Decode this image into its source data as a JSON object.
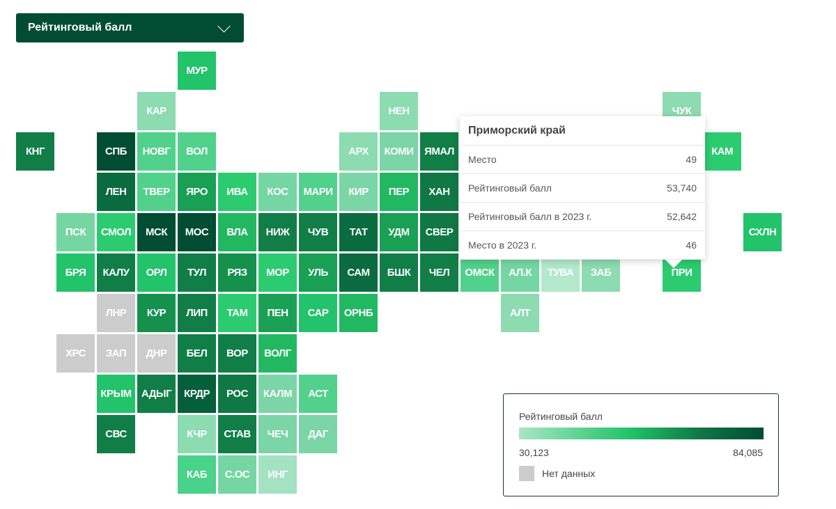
{
  "dropdown": {
    "selected": "Рейтинговый балл",
    "icon": "chevron-down-icon"
  },
  "colors": {
    "darkest": "#004d33",
    "no_data": "#cccccc"
  },
  "tiles": [
    {
      "label": "МУР",
      "c": 4,
      "r": 0,
      "color": "#22c36a"
    },
    {
      "label": "КАР",
      "c": 3,
      "r": 1,
      "color": "#8cdbb1"
    },
    {
      "label": "НЕН",
      "c": 9,
      "r": 1,
      "color": "#8cdbb1"
    },
    {
      "label": "ЧУК",
      "c": 16,
      "r": 1,
      "color": "#8cdbb1"
    },
    {
      "label": "КНГ",
      "c": 0,
      "r": 2,
      "color": "#117e48"
    },
    {
      "label": "СПБ",
      "c": 2,
      "r": 2,
      "color": "#004d33"
    },
    {
      "label": "НОВГ",
      "c": 3,
      "r": 2,
      "color": "#52d18c"
    },
    {
      "label": "ВОЛ",
      "c": 4,
      "r": 2,
      "color": "#52d18c"
    },
    {
      "label": "АРХ",
      "c": 8,
      "r": 2,
      "color": "#8cdbb1"
    },
    {
      "label": "КОМИ",
      "c": 9,
      "r": 2,
      "color": "#7cd5a7"
    },
    {
      "label": "ЯМАЛ",
      "c": 10,
      "r": 2,
      "color": "#117e48"
    },
    {
      "label": "КАМ",
      "c": 17,
      "r": 2,
      "color": "#2ccb70"
    },
    {
      "label": "ЛЕН",
      "c": 2,
      "r": 3,
      "color": "#0b6b40"
    },
    {
      "label": "ТВЕР",
      "c": 3,
      "r": 3,
      "color": "#52d18c"
    },
    {
      "label": "ЯРО",
      "c": 4,
      "r": 3,
      "color": "#19a055"
    },
    {
      "label": "ИВА",
      "c": 5,
      "r": 3,
      "color": "#2ccb70"
    },
    {
      "label": "КОС",
      "c": 6,
      "r": 3,
      "color": "#76d6a3"
    },
    {
      "label": "МАРИ",
      "c": 7,
      "r": 3,
      "color": "#52d18c"
    },
    {
      "label": "КИР",
      "c": 8,
      "r": 3,
      "color": "#7cd5a7"
    },
    {
      "label": "ПЕР",
      "c": 9,
      "r": 3,
      "color": "#22b862"
    },
    {
      "label": "ХАН",
      "c": 10,
      "r": 3,
      "color": "#0f7845"
    },
    {
      "label": "ПСК",
      "c": 1,
      "r": 4,
      "color": "#76d6a3"
    },
    {
      "label": "СМОЛ",
      "c": 2,
      "r": 4,
      "color": "#2ccb70"
    },
    {
      "label": "МСК",
      "c": 3,
      "r": 4,
      "color": "#004d33"
    },
    {
      "label": "МОС",
      "c": 4,
      "r": 4,
      "color": "#004d33"
    },
    {
      "label": "ВЛА",
      "c": 5,
      "r": 4,
      "color": "#22b862"
    },
    {
      "label": "НИЖ",
      "c": 6,
      "r": 4,
      "color": "#117e48"
    },
    {
      "label": "ЧУВ",
      "c": 7,
      "r": 4,
      "color": "#117e48"
    },
    {
      "label": "ТАТ",
      "c": 8,
      "r": 4,
      "color": "#0b6b40"
    },
    {
      "label": "УДМ",
      "c": 9,
      "r": 4,
      "color": "#19a055"
    },
    {
      "label": "СВЕР",
      "c": 10,
      "r": 4,
      "color": "#0f7845"
    },
    {
      "label": "СХЛН",
      "c": 18,
      "r": 4,
      "color": "#22c36a"
    },
    {
      "label": "БРЯ",
      "c": 1,
      "r": 5,
      "color": "#22c36a"
    },
    {
      "label": "КАЛУ",
      "c": 2,
      "r": 5,
      "color": "#117e48"
    },
    {
      "label": "ОРЛ",
      "c": 3,
      "r": 5,
      "color": "#22c36a"
    },
    {
      "label": "ТУЛ",
      "c": 4,
      "r": 5,
      "color": "#117e48"
    },
    {
      "label": "РЯЗ",
      "c": 5,
      "r": 5,
      "color": "#15904d"
    },
    {
      "label": "МОР",
      "c": 6,
      "r": 5,
      "color": "#2ccb70"
    },
    {
      "label": "УЛЬ",
      "c": 7,
      "r": 5,
      "color": "#19a055"
    },
    {
      "label": "САМ",
      "c": 8,
      "r": 5,
      "color": "#0b6b40"
    },
    {
      "label": "БШК",
      "c": 9,
      "r": 5,
      "color": "#117e48"
    },
    {
      "label": "ЧЕЛ",
      "c": 10,
      "r": 5,
      "color": "#117e48"
    },
    {
      "label": "ОМСК",
      "c": 11,
      "r": 5,
      "color": "#52d18c"
    },
    {
      "label": "АЛ.К",
      "c": 12,
      "r": 5,
      "color": "#76d6a3"
    },
    {
      "label": "ТУВА",
      "c": 13,
      "r": 5,
      "color": "#b2e8cb"
    },
    {
      "label": "ЗАБ",
      "c": 14,
      "r": 5,
      "color": "#8cdbb1"
    },
    {
      "label": "ПРИ",
      "c": 16,
      "r": 5,
      "color": "#2ccb70"
    },
    {
      "label": "ЛНР",
      "c": 2,
      "r": 6,
      "color": "#cccccc"
    },
    {
      "label": "КУР",
      "c": 3,
      "r": 6,
      "color": "#15904d"
    },
    {
      "label": "ЛИП",
      "c": 4,
      "r": 6,
      "color": "#117e48"
    },
    {
      "label": "ТАМ",
      "c": 5,
      "r": 6,
      "color": "#2ccb70"
    },
    {
      "label": "ПЕН",
      "c": 6,
      "r": 6,
      "color": "#19a055"
    },
    {
      "label": "САР",
      "c": 7,
      "r": 6,
      "color": "#22c36a"
    },
    {
      "label": "ОРНБ",
      "c": 8,
      "r": 6,
      "color": "#22b862"
    },
    {
      "label": "АЛТ",
      "c": 12,
      "r": 6,
      "color": "#8cdbb1"
    },
    {
      "label": "ХРС",
      "c": 1,
      "r": 7,
      "color": "#cccccc"
    },
    {
      "label": "ЗАП",
      "c": 2,
      "r": 7,
      "color": "#cccccc"
    },
    {
      "label": "ДНР",
      "c": 3,
      "r": 7,
      "color": "#cccccc"
    },
    {
      "label": "БЕЛ",
      "c": 4,
      "r": 7,
      "color": "#117e48"
    },
    {
      "label": "ВОР",
      "c": 5,
      "r": 7,
      "color": "#117e48"
    },
    {
      "label": "ВОЛГ",
      "c": 6,
      "r": 7,
      "color": "#22b862"
    },
    {
      "label": "КРЫМ",
      "c": 2,
      "r": 8,
      "color": "#22c36a"
    },
    {
      "label": "АДЫГ",
      "c": 3,
      "r": 8,
      "color": "#117e48"
    },
    {
      "label": "КРДР",
      "c": 4,
      "r": 8,
      "color": "#055f3b"
    },
    {
      "label": "РОС",
      "c": 5,
      "r": 8,
      "color": "#0f7845"
    },
    {
      "label": "КАЛМ",
      "c": 6,
      "r": 8,
      "color": "#7cd5a7"
    },
    {
      "label": "АСТ",
      "c": 7,
      "r": 8,
      "color": "#52d18c"
    },
    {
      "label": "СВС",
      "c": 2,
      "r": 9,
      "color": "#117e48"
    },
    {
      "label": "КЧР",
      "c": 4,
      "r": 9,
      "color": "#8cdbb1"
    },
    {
      "label": "СТАВ",
      "c": 5,
      "r": 9,
      "color": "#117e48"
    },
    {
      "label": "ЧЕЧ",
      "c": 6,
      "r": 9,
      "color": "#7cd5a7"
    },
    {
      "label": "ДАГ",
      "c": 7,
      "r": 9,
      "color": "#7cd5a7"
    },
    {
      "label": "КАБ",
      "c": 4,
      "r": 10,
      "color": "#48d28a"
    },
    {
      "label": "С.ОС",
      "c": 5,
      "r": 10,
      "color": "#76d6a3"
    },
    {
      "label": "ИНГ",
      "c": 6,
      "r": 10,
      "color": "#a3e2c2"
    }
  ],
  "tooltip": {
    "title": "Приморский край",
    "rows": [
      {
        "label": "Место",
        "value": "49"
      },
      {
        "label": "Рейтинговый балл",
        "value": "53,740"
      },
      {
        "label": "Рейтинговый балл в 2023 г.",
        "value": "52,642"
      },
      {
        "label": "Место в 2023 г.",
        "value": "46"
      }
    ]
  },
  "legend": {
    "title": "Рейтинговый балл",
    "min": "30,123",
    "max": "84,085",
    "no_data": "Нет данных"
  }
}
